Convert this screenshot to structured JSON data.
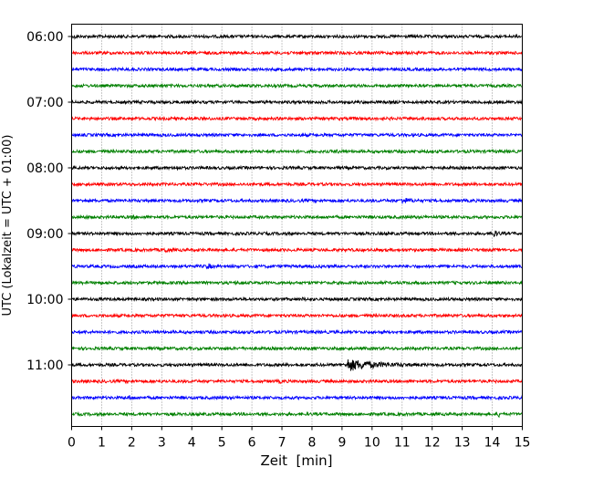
{
  "chart_data": {
    "type": "line",
    "subtype": "helicorder",
    "xlabel": "Zeit  [min]",
    "ylabel": "UTC (Lokalzeit = UTC + 01:00)",
    "xlim": [
      0,
      15
    ],
    "xticks": [
      "0",
      "1",
      "2",
      "3",
      "4",
      "5",
      "6",
      "7",
      "8",
      "9",
      "10",
      "11",
      "12",
      "13",
      "14",
      "15"
    ],
    "yticks": [
      "06:00",
      "07:00",
      "08:00",
      "09:00",
      "10:00",
      "11:00"
    ],
    "trace_minutes": 15,
    "trace_count": 24,
    "colors": [
      "#000000",
      "#ff0000",
      "#0000ff",
      "#008000"
    ],
    "grid": "vertical dotted, every minute",
    "traces": [
      "06:00",
      "06:15",
      "06:30",
      "06:45",
      "07:00",
      "07:15",
      "07:30",
      "07:45",
      "08:00",
      "08:15",
      "08:30",
      "08:45",
      "09:00",
      "09:15",
      "09:30",
      "09:45",
      "10:00",
      "10:15",
      "10:30",
      "10:45",
      "11:00",
      "11:15",
      "11:30",
      "11:45"
    ],
    "events": [
      {
        "trace": "06:00",
        "minute": 0.1,
        "amplitude": 1.5,
        "duration": 0.2
      },
      {
        "trace": "07:45",
        "minute": 8.8,
        "amplitude": 1.5,
        "duration": 0.4
      },
      {
        "trace": "08:00",
        "minute": 3.5,
        "amplitude": 2.5,
        "duration": 0.2
      },
      {
        "trace": "08:30",
        "minute": 11.0,
        "amplitude": 3,
        "duration": 0.8
      },
      {
        "trace": "08:45",
        "minute": 0.4,
        "amplitude": 2,
        "duration": 0.3
      },
      {
        "trace": "08:45",
        "minute": 2.0,
        "amplitude": 2,
        "duration": 0.3
      },
      {
        "trace": "09:00",
        "minute": 14.0,
        "amplitude": 4,
        "duration": 0.5
      },
      {
        "trace": "09:15",
        "minute": 3.1,
        "amplitude": 3.5,
        "duration": 0.4
      },
      {
        "trace": "09:30",
        "minute": 4.5,
        "amplitude": 4.5,
        "duration": 0.3
      },
      {
        "trace": "09:45",
        "minute": 5.5,
        "amplitude": 1.5,
        "duration": 0.3
      },
      {
        "trace": "10:00",
        "minute": 7.7,
        "amplitude": 2,
        "duration": 0.2
      },
      {
        "trace": "11:00",
        "minute": 9.2,
        "amplitude": 6,
        "duration": 3.0
      },
      {
        "trace": "11:15",
        "minute": 6.9,
        "amplitude": 1.5,
        "duration": 0.3
      },
      {
        "trace": "11:30",
        "minute": 1.9,
        "amplitude": 2,
        "duration": 0.3
      },
      {
        "trace": "11:45",
        "minute": 14.2,
        "amplitude": 3,
        "duration": 0.2
      }
    ]
  }
}
